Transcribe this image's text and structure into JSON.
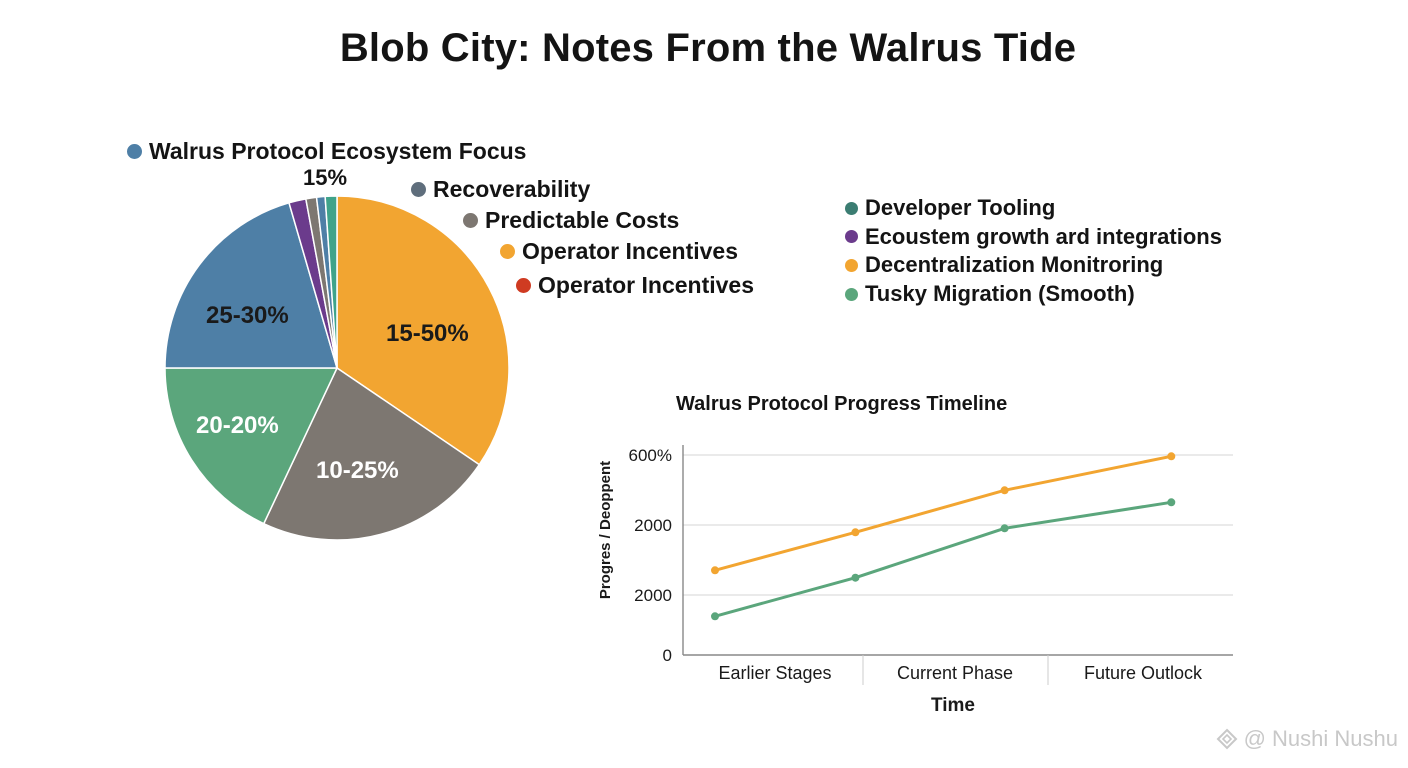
{
  "title": "Blob City: Notes From the Walrus Tide",
  "colors": {
    "blue": "#4e7fa6",
    "purple": "#6b3b8c",
    "slate": "#5f6e7c",
    "gray": "#7d7771",
    "orange": "#f2a531",
    "red": "#cf3b22",
    "teal": "#3b7d72",
    "green": "#5ba67c",
    "grid": "#dddddd",
    "axis": "#888888"
  },
  "watermark": {
    "icon": "diamond-logo-icon",
    "text": "@ Nushi Nushu"
  },
  "chart_data": [
    {
      "type": "pie",
      "title": "",
      "legend": [
        {
          "label": "Walrus Protocol Ecosystem Focus",
          "color": "#4e7fa6"
        },
        {
          "label": "Recoverability",
          "color": "#5f6e7c"
        },
        {
          "label": "Predictable Costs",
          "color": "#7d7771"
        },
        {
          "label": "Operator Incentives",
          "color": "#f2a531"
        },
        {
          "label": "Operator Incentives",
          "color": "#cf3b22"
        }
      ],
      "outside_label": "15%",
      "slices": [
        {
          "label": "15-50%",
          "value": 34.5,
          "color": "#f2a531"
        },
        {
          "label": "10-25%",
          "value": 22.5,
          "color": "#7d7771"
        },
        {
          "label": "20-20%",
          "value": 18.0,
          "color": "#5ba67c"
        },
        {
          "label": "25-30%",
          "value": 20.5,
          "color": "#4e7fa6"
        },
        {
          "label": "",
          "value": 1.6,
          "color": "#6b3b8c"
        },
        {
          "label": "",
          "value": 1.0,
          "color": "#7d7771"
        },
        {
          "label": "",
          "value": 0.8,
          "color": "#4e7fa6"
        },
        {
          "label": "",
          "value": 1.1,
          "color": "#3fa38a"
        }
      ]
    },
    {
      "type": "line",
      "title": "Walrus Protocol Progress Timeline",
      "legend": [
        {
          "label": "Developer Tooling",
          "color": "#3b7d72"
        },
        {
          "label": "Ecoustem growth ard integrations",
          "color": "#6b3b8c"
        },
        {
          "label": "Decentralization Monitroring",
          "color": "#f2a531"
        },
        {
          "label": "Tusky Migration (Smooth)",
          "color": "#5ba67c"
        }
      ],
      "xlabel": "Time",
      "ylabel": "Progres / Deoppent",
      "categories": [
        "Earlier Stages",
        "Current Phase",
        "Future Outlock"
      ],
      "y_ticks": [
        "600%",
        "2000",
        "2000",
        "0"
      ],
      "ylim": [
        0,
        3
      ],
      "series": [
        {
          "color": "#f2a531",
          "x": [
            0,
            0.8,
            1.65,
            2.6
          ],
          "values": [
            1.27,
            1.84,
            2.47,
            2.98
          ]
        },
        {
          "color": "#5ba67c",
          "x": [
            0,
            0.8,
            1.65,
            2.6
          ],
          "values": [
            0.58,
            1.16,
            1.9,
            2.29
          ]
        }
      ]
    }
  ]
}
